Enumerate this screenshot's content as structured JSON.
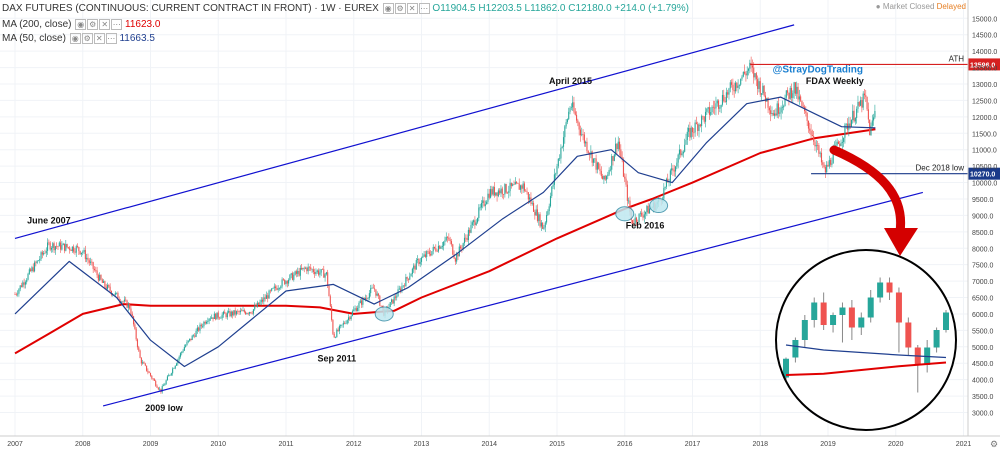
{
  "header": {
    "title": "DAX FUTURES (CONTINUOUS: CURRENT CONTRACT IN FRONT) · 1W · EUREX",
    "ohlc": "O11904.5 H12203.5 L11862.0 C12180.0 +214.0 (+1.79%)",
    "ma200_label": "MA (200, close)",
    "ma200_value": "11623.0",
    "ma50_label": "MA (50, close)",
    "ma50_value": "11663.5",
    "market_status": "● Market Closed",
    "delay": "Delayed"
  },
  "colors": {
    "up": "#26a69a",
    "down": "#ef5350",
    "ma200": "#e00000",
    "ma50": "#1f3f8f",
    "channel": "#1010d0",
    "ath": "#d62020",
    "dec_low": "#1a3a8a",
    "arrow": "#d40000",
    "ellipse": "#bfe8f0",
    "text": "#111111"
  },
  "chart_data": {
    "type": "candlestick",
    "title": "DAX FUTURES (CONTINUOUS: CURRENT CONTRACT IN FRONT) · 1W · EUREX",
    "ylim": [
      2500,
      15000
    ],
    "xlim": [
      2007.0,
      2021.0
    ],
    "y_ticks": [
      3000,
      3500,
      4000,
      4500,
      5000,
      5500,
      6000,
      6500,
      7000,
      7500,
      8000,
      8500,
      9000,
      9500,
      10000,
      10500,
      11000,
      11500,
      12000,
      12500,
      13000,
      13500,
      14000,
      14500,
      15000
    ],
    "x_ticks": [
      "2007",
      "2008",
      "2009",
      "2010",
      "2011",
      "2012",
      "2013",
      "2014",
      "2015",
      "2016",
      "2017",
      "2018",
      "2019",
      "2020",
      "2021"
    ],
    "price_path": [
      [
        2007.0,
        6600
      ],
      [
        2007.5,
        8100
      ],
      [
        2007.9,
        8000
      ],
      [
        2008.0,
        7900
      ],
      [
        2008.3,
        6900
      ],
      [
        2008.7,
        6200
      ],
      [
        2008.85,
        4600
      ],
      [
        2009.15,
        3650
      ],
      [
        2009.5,
        5000
      ],
      [
        2009.85,
        5900
      ],
      [
        2010.5,
        6100
      ],
      [
        2010.9,
        6900
      ],
      [
        2011.3,
        7400
      ],
      [
        2011.6,
        7200
      ],
      [
        2011.7,
        5300
      ],
      [
        2012.0,
        6100
      ],
      [
        2012.3,
        6800
      ],
      [
        2012.45,
        6000
      ],
      [
        2012.95,
        7600
      ],
      [
        2013.4,
        8300
      ],
      [
        2013.5,
        7700
      ],
      [
        2014.0,
        9700
      ],
      [
        2014.5,
        9900
      ],
      [
        2014.8,
        8600
      ],
      [
        2015.2,
        12400
      ],
      [
        2015.4,
        11300
      ],
      [
        2015.7,
        10000
      ],
      [
        2015.9,
        11300
      ],
      [
        2016.1,
        8800
      ],
      [
        2016.5,
        9400
      ],
      [
        2016.95,
        11500
      ],
      [
        2017.5,
        12700
      ],
      [
        2017.85,
        13500
      ],
      [
        2018.2,
        12100
      ],
      [
        2018.5,
        12900
      ],
      [
        2018.8,
        11300
      ],
      [
        2018.95,
        10300
      ],
      [
        2019.3,
        11800
      ],
      [
        2019.55,
        12600
      ],
      [
        2019.62,
        11500
      ],
      [
        2019.7,
        12200
      ]
    ],
    "ma200_path": [
      [
        2007.0,
        4800
      ],
      [
        2007.5,
        5400
      ],
      [
        2008.0,
        6000
      ],
      [
        2008.6,
        6300
      ],
      [
        2009.0,
        6250
      ],
      [
        2010.0,
        6250
      ],
      [
        2011.0,
        6250
      ],
      [
        2011.5,
        6200
      ],
      [
        2012.0,
        6000
      ],
      [
        2012.6,
        6100
      ],
      [
        2013.0,
        6500
      ],
      [
        2014.0,
        7300
      ],
      [
        2015.0,
        8300
      ],
      [
        2016.0,
        9200
      ],
      [
        2016.4,
        9500
      ],
      [
        2017.0,
        10000
      ],
      [
        2018.0,
        10900
      ],
      [
        2018.8,
        11350
      ],
      [
        2019.3,
        11500
      ],
      [
        2019.7,
        11623
      ]
    ],
    "ma50_path": [
      [
        2007.0,
        6000
      ],
      [
        2007.8,
        7600
      ],
      [
        2008.5,
        6500
      ],
      [
        2009.0,
        5200
      ],
      [
        2009.5,
        4400
      ],
      [
        2010.0,
        5000
      ],
      [
        2011.0,
        6700
      ],
      [
        2011.7,
        6900
      ],
      [
        2012.3,
        6300
      ],
      [
        2012.8,
        6800
      ],
      [
        2013.5,
        7800
      ],
      [
        2014.2,
        8900
      ],
      [
        2014.8,
        9700
      ],
      [
        2015.3,
        10800
      ],
      [
        2015.8,
        11000
      ],
      [
        2016.2,
        10300
      ],
      [
        2016.7,
        10000
      ],
      [
        2017.2,
        11200
      ],
      [
        2017.8,
        12400
      ],
      [
        2018.3,
        12600
      ],
      [
        2018.8,
        12100
      ],
      [
        2019.2,
        11700
      ],
      [
        2019.7,
        11663
      ]
    ],
    "channel_upper": [
      [
        2007.0,
        8300
      ],
      [
        2018.5,
        14800
      ]
    ],
    "channel_lower": [
      [
        2008.3,
        3200
      ],
      [
        2020.4,
        9700
      ]
    ],
    "levels": [
      {
        "label": "ATH",
        "value": 13596.0,
        "price_tag": "13596.0",
        "x_from": 2017.85
      },
      {
        "label": "Dec 2018 low",
        "value": 10270.0,
        "price_tag": "10270.0",
        "x_from": 2018.75
      }
    ],
    "annotations": [
      {
        "text": "June 2007",
        "x": 2007.5,
        "y": 8750
      },
      {
        "text": "2009 low",
        "x": 2009.2,
        "y": 3050
      },
      {
        "text": "Sep 2011",
        "x": 2011.75,
        "y": 4550
      },
      {
        "text": "April 2015",
        "x": 2015.2,
        "y": 13000
      },
      {
        "text": "Feb 2016",
        "x": 2016.3,
        "y": 8600
      },
      {
        "text": "@StrayDogTrading",
        "x": 2018.85,
        "y": 13350
      },
      {
        "text": "FDAX Weekly",
        "x": 2019.1,
        "y": 13000
      }
    ],
    "highlight_ellipses": [
      [
        2012.45,
        6000
      ],
      [
        2016.0,
        9050
      ],
      [
        2016.5,
        9300
      ]
    ],
    "zoom_inset": {
      "candles": [
        [
          4000,
          4800,
          4750,
          3900
        ],
        [
          4800,
          5600,
          5500,
          4600
        ],
        [
          5500,
          6500,
          6300,
          5200
        ],
        [
          6300,
          7200,
          7000,
          6000
        ],
        [
          7000,
          7400,
          6100,
          5900
        ],
        [
          6100,
          6600,
          6500,
          5800
        ],
        [
          6500,
          7000,
          6800,
          5400
        ],
        [
          6800,
          7100,
          6000,
          5500
        ],
        [
          6000,
          6600,
          6400,
          5700
        ],
        [
          6400,
          7500,
          7200,
          6200
        ],
        [
          7200,
          8000,
          7800,
          7000
        ],
        [
          7800,
          8000,
          7400,
          7100
        ],
        [
          7400,
          7600,
          6200,
          5000
        ],
        [
          6200,
          6400,
          5200,
          4900
        ],
        [
          5200,
          5300,
          4500,
          3400
        ],
        [
          4500,
          5500,
          5200,
          4200
        ],
        [
          5200,
          6000,
          5900,
          5000
        ],
        [
          5900,
          6700,
          6600,
          5800
        ]
      ],
      "ma50": [
        [
          0,
          5300
        ],
        [
          4,
          5100
        ],
        [
          8,
          5000
        ],
        [
          12,
          4900
        ],
        [
          17,
          4800
        ]
      ],
      "ma200": [
        [
          0,
          4100
        ],
        [
          4,
          4150
        ],
        [
          8,
          4300
        ],
        [
          12,
          4450
        ],
        [
          17,
          4600
        ]
      ],
      "ylim": [
        2500,
        8500
      ]
    }
  }
}
